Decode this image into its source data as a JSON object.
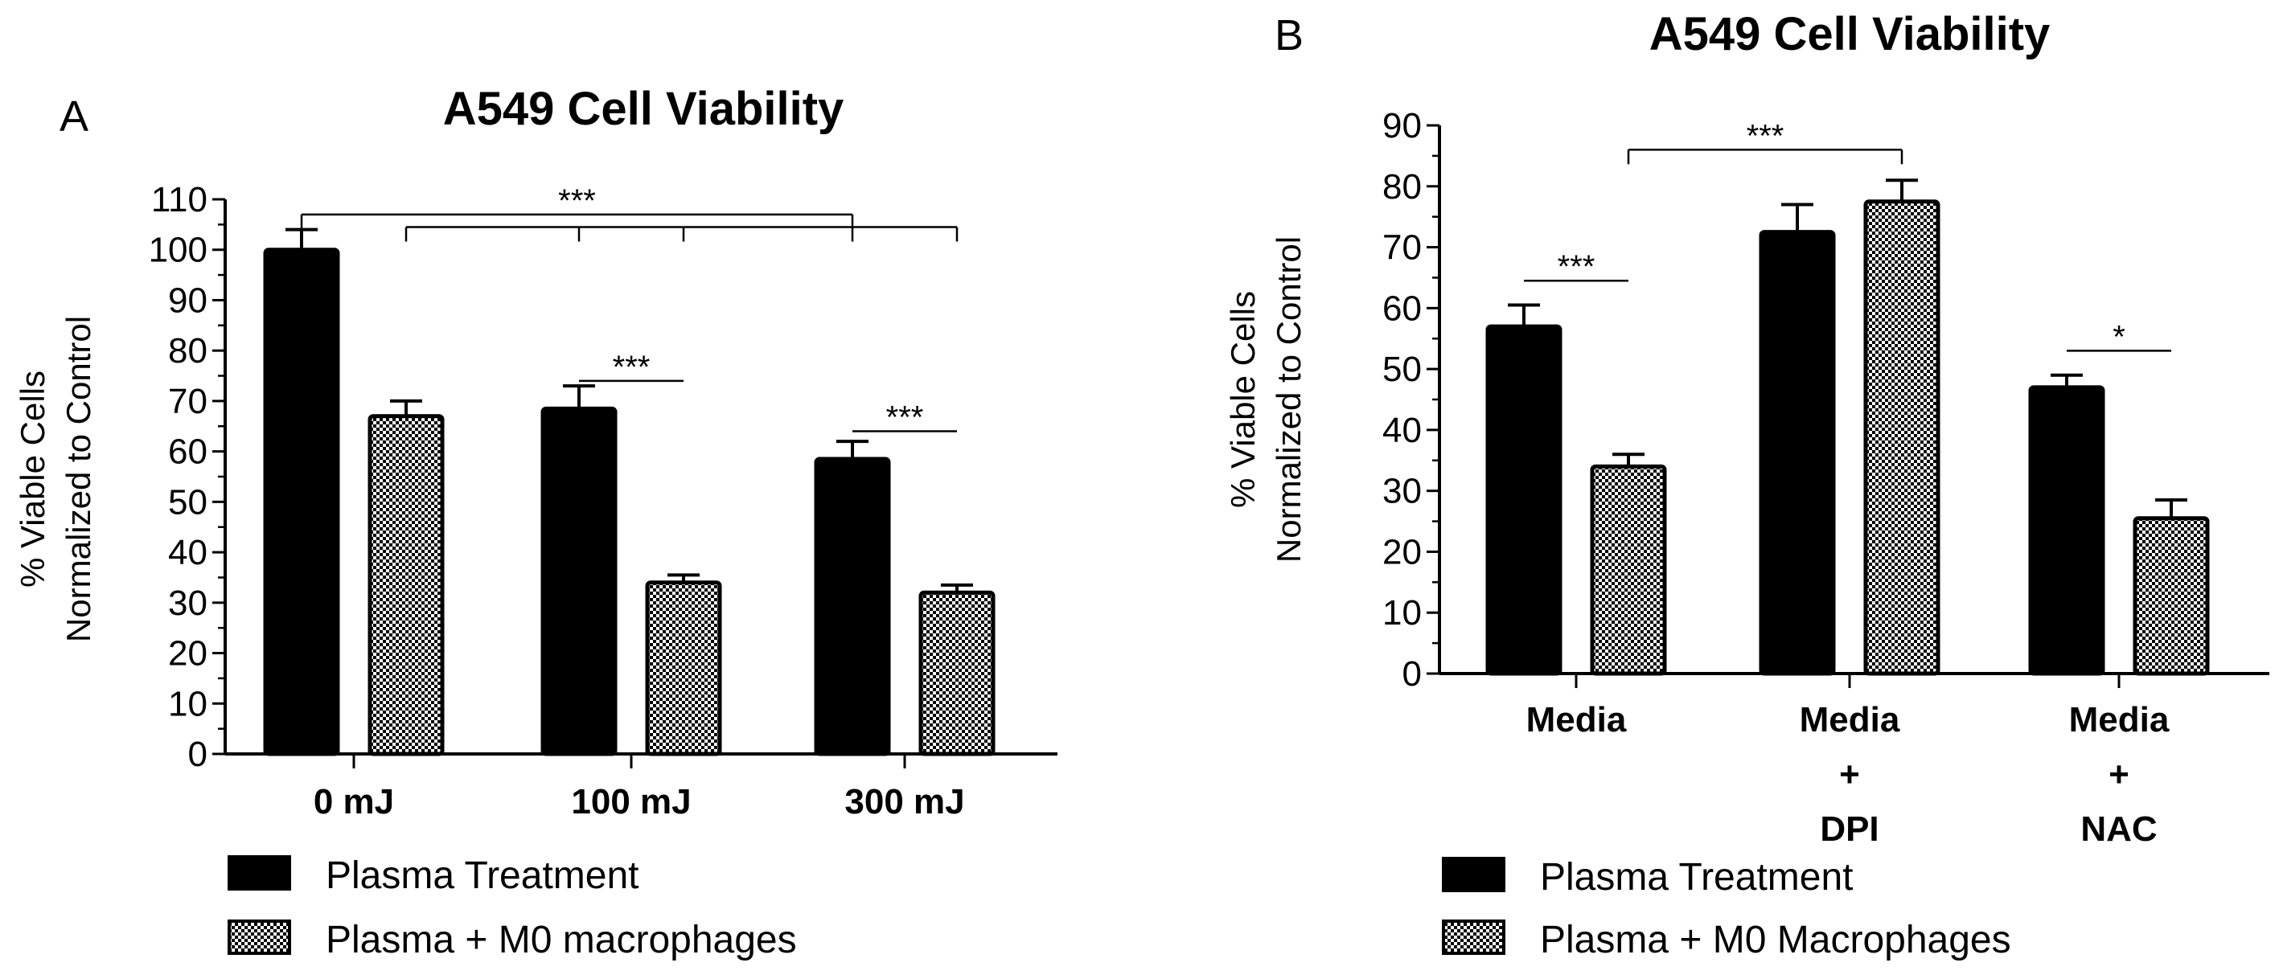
{
  "colors": {
    "plasma": "#000000",
    "macrophage_pattern": "#000000",
    "background": "#ffffff"
  },
  "chart_data": [
    {
      "panel": "A",
      "type": "bar",
      "title": "A549 Cell Viability",
      "ylabel": [
        "% Viable Cells",
        "Normalized to Control"
      ],
      "xlabel": "",
      "ylim": [
        0,
        110
      ],
      "ytick_step": 10,
      "categories": [
        "0 mJ",
        "100 mJ",
        "300 mJ"
      ],
      "series": [
        {
          "name": "Plasma Treatment",
          "pattern": "solid",
          "values": [
            100,
            68.5,
            58.5
          ],
          "errors": [
            4,
            4.5,
            3.5
          ]
        },
        {
          "name": "Plasma + M0 macrophages",
          "pattern": "checker",
          "values": [
            67,
            34,
            32
          ],
          "errors": [
            3,
            1.5,
            1.5
          ]
        }
      ],
      "legend": [
        "Plasma Treatment",
        "Plasma + M0 macrophages"
      ],
      "legend_position": "bottom",
      "significance": [
        {
          "label": "***",
          "type": "bracket-multi",
          "from": [
            0,
            0
          ],
          "to": [
            2,
            0
          ],
          "y": 107
        },
        {
          "label": "",
          "type": "bracket-multi",
          "from": [
            0,
            1
          ],
          "to": [
            2,
            1
          ],
          "drops": [
            [
              0,
              1
            ],
            [
              1,
              0
            ],
            [
              1,
              1
            ],
            [
              2,
              0
            ],
            [
              2,
              1
            ]
          ],
          "y": 104.5
        },
        {
          "label": "***",
          "type": "line",
          "from": [
            1,
            0
          ],
          "to": [
            1,
            1
          ],
          "y": 74
        },
        {
          "label": "***",
          "type": "line",
          "from": [
            2,
            0
          ],
          "to": [
            2,
            1
          ],
          "y": 64
        }
      ]
    },
    {
      "panel": "B",
      "type": "bar",
      "title": "A549 Cell Viability",
      "ylabel": [
        "% Viable Cells",
        "Normalized to Control"
      ],
      "xlabel": "",
      "ylim": [
        0,
        90
      ],
      "ytick_step": 10,
      "categories": [
        [
          "Media"
        ],
        [
          "Media",
          "+",
          "DPI"
        ],
        [
          "Media",
          "+",
          "NAC"
        ]
      ],
      "series": [
        {
          "name": "Plasma Treatment",
          "pattern": "solid",
          "values": [
            57,
            72.5,
            47
          ],
          "errors": [
            3.5,
            4.5,
            2
          ]
        },
        {
          "name": "Plasma + M0 Macrophages",
          "pattern": "checker",
          "values": [
            34,
            77.5,
            25.5
          ],
          "errors": [
            2,
            3.5,
            3
          ]
        }
      ],
      "legend": [
        "Plasma Treatment",
        "Plasma + M0 Macrophages"
      ],
      "legend_position": "bottom",
      "significance": [
        {
          "label": "***",
          "type": "bracket",
          "from": [
            0,
            1
          ],
          "to": [
            1,
            1
          ],
          "y": 86
        },
        {
          "label": "***",
          "type": "line",
          "from": [
            0,
            0
          ],
          "to": [
            0,
            1
          ],
          "y": 64.5
        },
        {
          "label": "*",
          "type": "line",
          "from": [
            2,
            0
          ],
          "to": [
            2,
            1
          ],
          "y": 53
        }
      ]
    }
  ],
  "panels": [
    {
      "letter": "A"
    },
    {
      "letter": "B"
    }
  ]
}
